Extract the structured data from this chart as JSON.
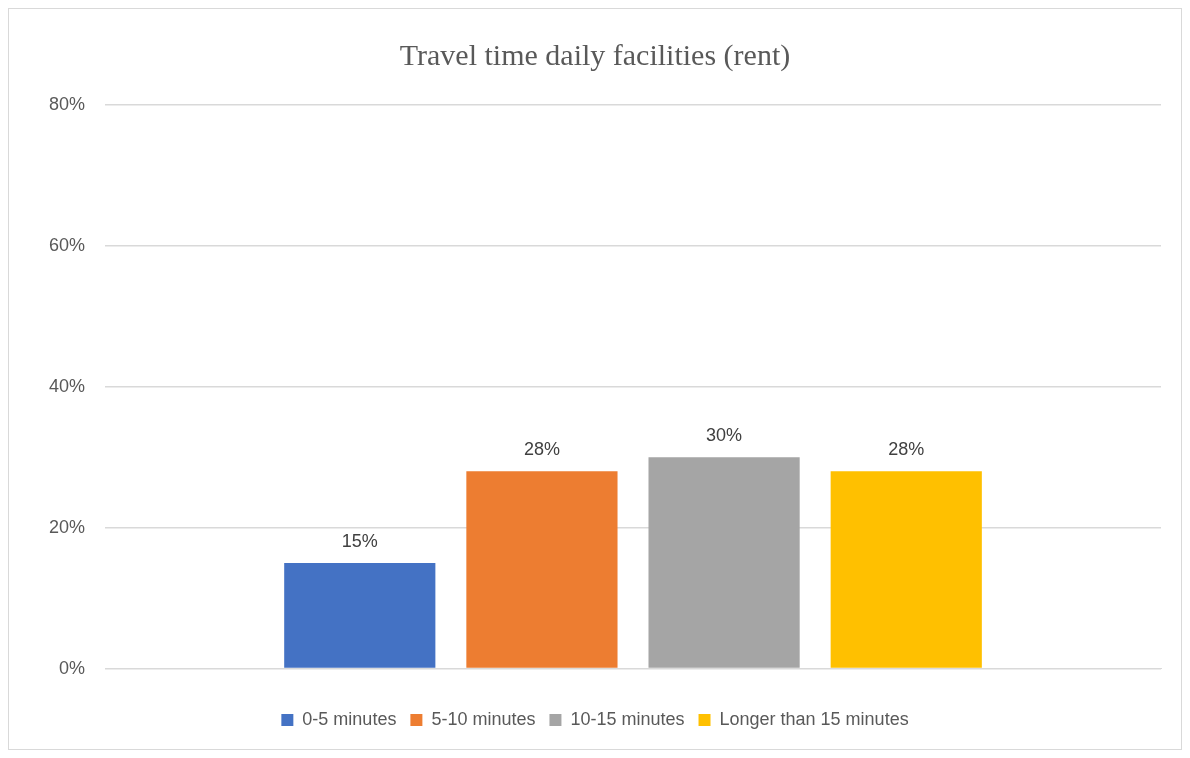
{
  "chart_data": {
    "type": "bar",
    "title": "Travel time daily facilities (rent)",
    "categories": [
      null
    ],
    "series": [
      {
        "name": "0-5 minutes",
        "color": "#4472c4",
        "values": [
          15
        ],
        "value_labels": [
          "15%"
        ]
      },
      {
        "name": "5-10 minutes",
        "color": "#ed7d31",
        "values": [
          28
        ],
        "value_labels": [
          "28%"
        ]
      },
      {
        "name": "10-15 minutes",
        "color": "#a5a5a5",
        "values": [
          30
        ],
        "value_labels": [
          "30%"
        ]
      },
      {
        "name": "Longer than 15 minutes",
        "color": "#ffc000",
        "values": [
          28
        ],
        "value_labels": [
          "28%"
        ]
      }
    ],
    "ylim": [
      0,
      80
    ],
    "yticks": [
      {
        "value": 0,
        "label": "0%"
      },
      {
        "value": 20,
        "label": "20%"
      },
      {
        "value": 40,
        "label": "40%"
      },
      {
        "value": 60,
        "label": "60%"
      },
      {
        "value": 80,
        "label": "80%"
      }
    ],
    "grid": "y",
    "legend": "bottom"
  }
}
